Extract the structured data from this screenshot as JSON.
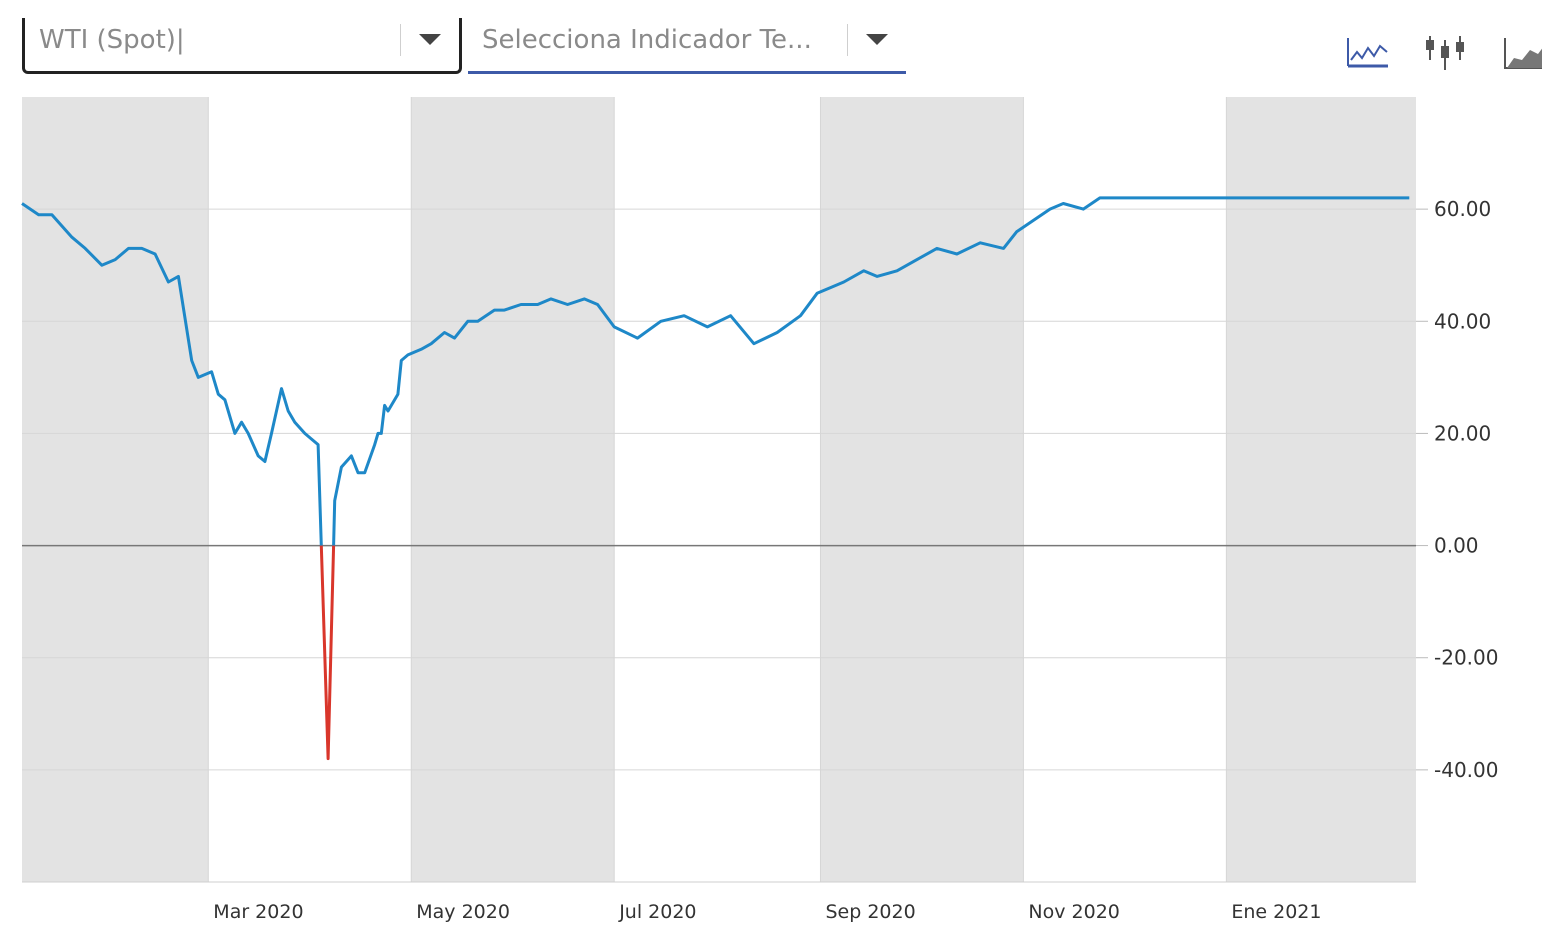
{
  "toolbar": {
    "asset_select": {
      "value": "WTI (Spot)|"
    },
    "indicator_select": {
      "placeholder": "Selecciona Indicador Te..."
    },
    "chart_types": [
      {
        "name": "line-chart-icon"
      },
      {
        "name": "candlestick-chart-icon"
      },
      {
        "name": "area-chart-icon"
      }
    ]
  },
  "colors": {
    "positive": "#1e88c8",
    "negative": "#d9362b",
    "band": "#e3e3e3",
    "grid": "#d6d6d6",
    "zero": "#777777"
  },
  "chart_data": {
    "type": "line",
    "ylim": [
      -60,
      80
    ],
    "yticks": [
      {
        "value": 60,
        "label": "60.00"
      },
      {
        "value": 40,
        "label": "40.00"
      },
      {
        "value": 20,
        "label": "20.00"
      },
      {
        "value": 0,
        "label": "0.00"
      },
      {
        "value": -20,
        "label": "-20.00"
      },
      {
        "value": -40,
        "label": "-40.00"
      }
    ],
    "xlim": [
      "2020-01-05",
      "2021-02-27"
    ],
    "month_bands": [
      "2020-01-05",
      "2020-03-01",
      "2020-05-01",
      "2020-07-01",
      "2020-09-01",
      "2020-11-01",
      "2021-01-01",
      "2021-02-27"
    ],
    "xticks": [
      {
        "date": "2020-03-01",
        "label": "Mar 2020"
      },
      {
        "date": "2020-05-01",
        "label": "May 2020"
      },
      {
        "date": "2020-07-01",
        "label": "Jul 2020"
      },
      {
        "date": "2020-09-01",
        "label": "Sep 2020"
      },
      {
        "date": "2020-11-01",
        "label": "Nov 2020"
      },
      {
        "date": "2021-01-01",
        "label": "Ene 2021"
      }
    ],
    "series": [
      {
        "x": [
          "2020-01-05",
          "2020-01-10",
          "2020-01-14",
          "2020-01-20",
          "2020-01-24",
          "2020-01-29",
          "2020-02-02",
          "2020-02-06",
          "2020-02-10",
          "2020-02-14",
          "2020-02-18",
          "2020-02-21",
          "2020-02-25",
          "2020-02-27",
          "2020-03-02",
          "2020-03-04",
          "2020-03-06",
          "2020-03-09",
          "2020-03-11",
          "2020-03-13",
          "2020-03-16",
          "2020-03-18",
          "2020-03-20",
          "2020-03-23",
          "2020-03-25",
          "2020-03-27",
          "2020-03-30",
          "2020-04-01",
          "2020-04-03",
          "2020-04-06",
          "2020-04-08",
          "2020-04-10",
          "2020-04-13",
          "2020-04-15",
          "2020-04-17",
          "2020-04-20",
          "2020-04-21",
          "2020-04-22",
          "2020-04-23",
          "2020-04-24",
          "2020-04-27",
          "2020-04-28",
          "2020-04-30",
          "2020-05-04",
          "2020-05-07",
          "2020-05-11",
          "2020-05-14",
          "2020-05-18",
          "2020-05-21",
          "2020-05-26",
          "2020-05-29",
          "2020-06-03",
          "2020-06-08",
          "2020-06-12",
          "2020-06-17",
          "2020-06-22",
          "2020-06-26",
          "2020-07-01",
          "2020-07-08",
          "2020-07-15",
          "2020-07-22",
          "2020-07-29",
          "2020-08-05",
          "2020-08-12",
          "2020-08-19",
          "2020-08-26",
          "2020-08-31",
          "2020-09-04",
          "2020-09-08",
          "2020-09-14",
          "2020-09-18",
          "2020-09-24",
          "2020-09-30",
          "2020-10-06",
          "2020-10-12",
          "2020-10-19",
          "2020-10-26",
          "2020-10-30",
          "2020-11-04",
          "2020-11-09",
          "2020-11-13",
          "2020-11-19",
          "2020-11-24",
          "2020-11-30",
          "2020-12-07",
          "2020-12-14",
          "2020-12-21",
          "2020-12-28",
          "2021-01-04",
          "2021-01-08",
          "2021-01-14",
          "2021-01-20",
          "2021-01-27",
          "2021-02-02",
          "2021-02-08",
          "2021-02-15",
          "2021-02-20",
          "2021-02-25"
        ],
        "y": [
          61,
          59,
          59,
          55,
          53,
          50,
          51,
          53,
          53,
          52,
          47,
          48,
          33,
          30,
          31,
          27,
          26,
          20,
          22,
          20,
          16,
          15,
          20,
          28,
          24,
          22,
          20,
          19,
          18,
          -38,
          8,
          14,
          16,
          13,
          13,
          18,
          20,
          20,
          25,
          24,
          27,
          33,
          34,
          35,
          36,
          38,
          37,
          40,
          40,
          42,
          42,
          43,
          43,
          44,
          43,
          44,
          43,
          39,
          37,
          40,
          41,
          39,
          41,
          36,
          38,
          41,
          45,
          46,
          47,
          49,
          48,
          49,
          51,
          53,
          52,
          54,
          53,
          56,
          58,
          60,
          61,
          60,
          62,
          62,
          62,
          62,
          62,
          62,
          62,
          62,
          62,
          62,
          62,
          62,
          62,
          62,
          62,
          62
        ]
      }
    ]
  }
}
